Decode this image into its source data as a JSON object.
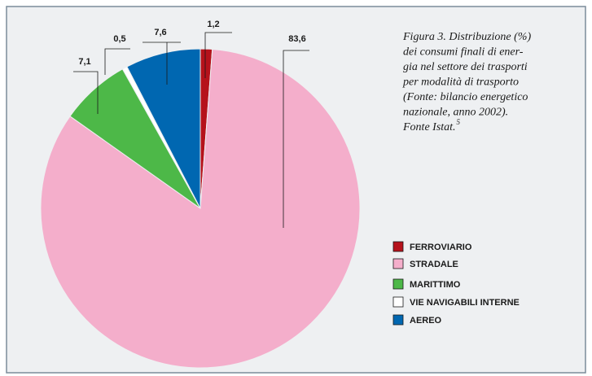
{
  "chart_data": {
    "type": "pie",
    "categories": [
      "FERROVIARIO",
      "STRADALE",
      "MARITTIMO",
      "VIE NAVIGABILI INTERNE",
      "AEREO"
    ],
    "values": [
      1.2,
      83.6,
      7.1,
      0.5,
      7.6
    ],
    "value_labels": [
      "1,2",
      "83,6",
      "7,1",
      "0,5",
      "7,6"
    ],
    "colors": [
      "#b5121b",
      "#f4aecb",
      "#4db848",
      "#ffffff",
      "#0067b1"
    ],
    "caption": [
      "Figura 3. Distribuzione (%)",
      "dei consumi finali di ener-",
      "gia nel settore dei trasporti",
      "per modalità di trasporto",
      "(Fonte: bilancio energetico",
      "nazionale, anno 2002).",
      "Fonte Istat."
    ],
    "caption_note": "5",
    "legend": "right"
  }
}
